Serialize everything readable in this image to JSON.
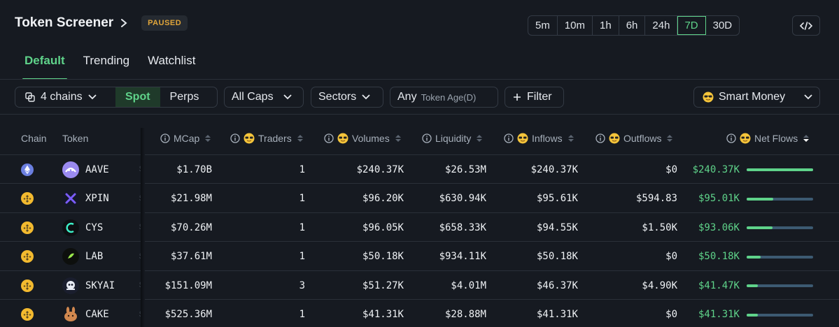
{
  "header": {
    "title": "Token Screener",
    "status_badge": "PAUSED",
    "timeframes": [
      "5m",
      "10m",
      "1h",
      "6h",
      "24h",
      "7D",
      "30D"
    ],
    "active_timeframe": "7D"
  },
  "tabs": [
    {
      "label": "Default",
      "active": true
    },
    {
      "label": "Trending",
      "active": false
    },
    {
      "label": "Watchlist",
      "active": false
    }
  ],
  "filters": {
    "chains": "4 chains",
    "spot": "Spot",
    "perps": "Perps",
    "caps": "All Caps",
    "sectors": "Sectors",
    "age_value": "Any",
    "age_label": "Token Age(D)",
    "filter": "Filter",
    "smart_money": "Smart Money"
  },
  "columns": {
    "chain": "Chain",
    "token": "Token",
    "mcap": "MCap",
    "traders": "Traders",
    "volumes": "Volumes",
    "liquidity": "Liquidity",
    "inflows": "Inflows",
    "outflows": "Outflows",
    "net_flows": "Net Flows"
  },
  "rows": [
    {
      "chain": "ethereum",
      "token": "AAVE",
      "mcap": "$1.70B",
      "traders": "1",
      "volumes": "$240.37K",
      "liquidity": "$26.53M",
      "inflows": "$240.37K",
      "outflows": "$0",
      "net_flows": "$240.37K",
      "net_ratio": 1.0
    },
    {
      "chain": "bnb",
      "token": "XPIN",
      "mcap": "$21.98M",
      "traders": "1",
      "volumes": "$96.20K",
      "liquidity": "$630.94K",
      "inflows": "$95.61K",
      "outflows": "$594.83",
      "net_flows": "$95.01K",
      "net_ratio": 0.4
    },
    {
      "chain": "bnb",
      "token": "CYS",
      "mcap": "$70.26M",
      "traders": "1",
      "volumes": "$96.05K",
      "liquidity": "$658.33K",
      "inflows": "$94.55K",
      "outflows": "$1.50K",
      "net_flows": "$93.06K",
      "net_ratio": 0.39
    },
    {
      "chain": "bnb",
      "token": "LAB",
      "mcap": "$37.61M",
      "traders": "1",
      "volumes": "$50.18K",
      "liquidity": "$934.11K",
      "inflows": "$50.18K",
      "outflows": "$0",
      "net_flows": "$50.18K",
      "net_ratio": 0.21
    },
    {
      "chain": "bnb",
      "token": "SKYAI",
      "mcap": "$151.09M",
      "traders": "3",
      "volumes": "$51.27K",
      "liquidity": "$4.01M",
      "inflows": "$46.37K",
      "outflows": "$4.90K",
      "net_flows": "$41.47K",
      "net_ratio": 0.17
    },
    {
      "chain": "bnb",
      "token": "CAKE",
      "mcap": "$525.36M",
      "traders": "1",
      "volumes": "$41.31K",
      "liquidity": "$28.88M",
      "inflows": "$41.31K",
      "outflows": "$0",
      "net_flows": "$41.31K",
      "net_ratio": 0.17
    }
  ],
  "colors": {
    "accent": "#5fd38a",
    "paused": "#e0a53a",
    "bar_track": "#3c5a72",
    "background": "#161a21"
  }
}
